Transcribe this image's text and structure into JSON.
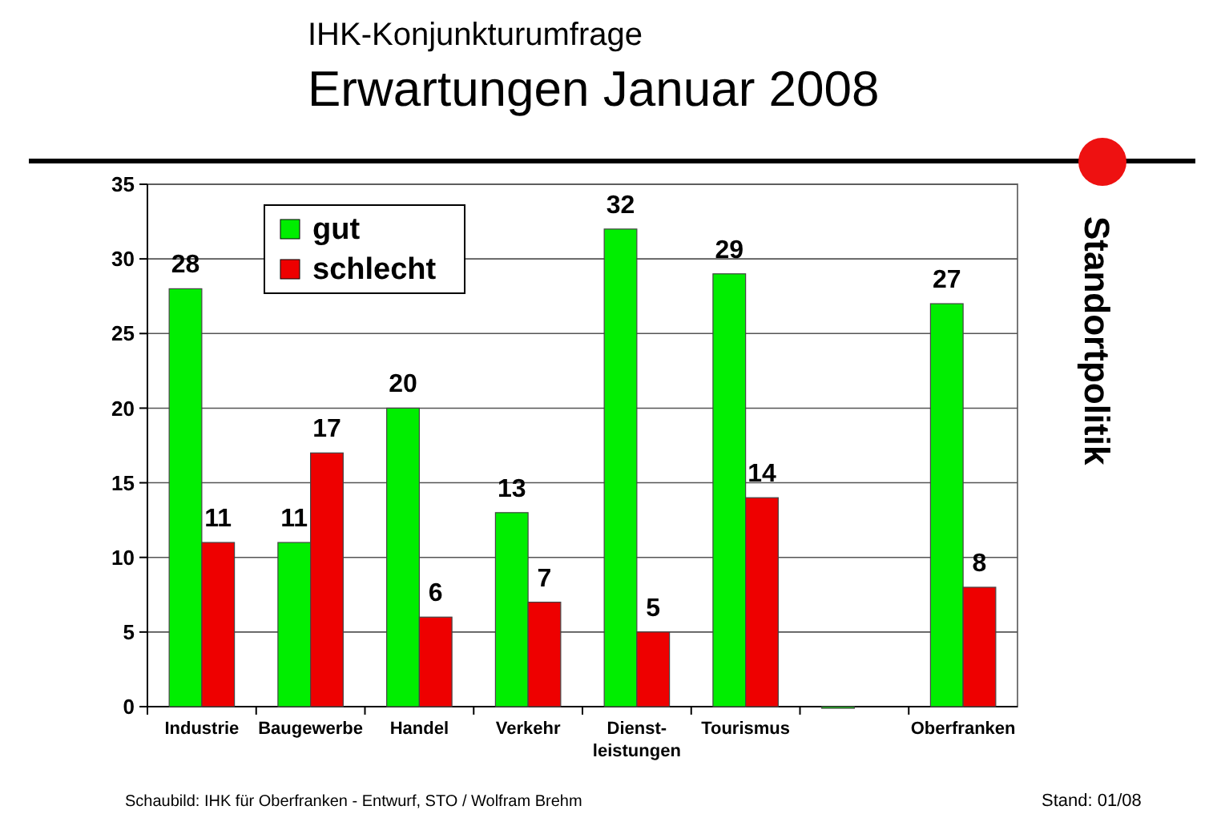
{
  "chart_data": {
    "type": "bar",
    "title": "Erwartungen Januar 2008",
    "subtitle": "IHK-Konjunkturumfrage",
    "categories": [
      "Industrie",
      "Baugewerbe",
      "Handel",
      "Verkehr",
      "Dienst-\nleistungen",
      "Tourismus",
      null,
      "Oberfranken"
    ],
    "series": [
      {
        "name": "gut",
        "color": "#00ee00",
        "values": [
          28,
          11,
          20,
          13,
          32,
          29,
          0,
          27
        ],
        "value_labels": [
          "28",
          "11",
          "20",
          "13",
          "32",
          "29",
          null,
          "27"
        ]
      },
      {
        "name": "schlecht",
        "color": "#ee0000",
        "values": [
          11,
          17,
          6,
          7,
          5,
          14,
          null,
          8
        ],
        "value_labels": [
          "11",
          "17",
          "6",
          "7",
          "5",
          "14",
          null,
          "8"
        ]
      }
    ],
    "ylim": [
      0,
      35
    ],
    "yticks": [
      0,
      5,
      10,
      15,
      20,
      25,
      30,
      35
    ],
    "grid": "y",
    "legend": "top left",
    "annotations": [
      "Standortpolitik",
      "Schaubild: IHK für Oberfranken - Entwurf, STO / Wolfram Brehm",
      "Stand: 01/08"
    ]
  }
}
